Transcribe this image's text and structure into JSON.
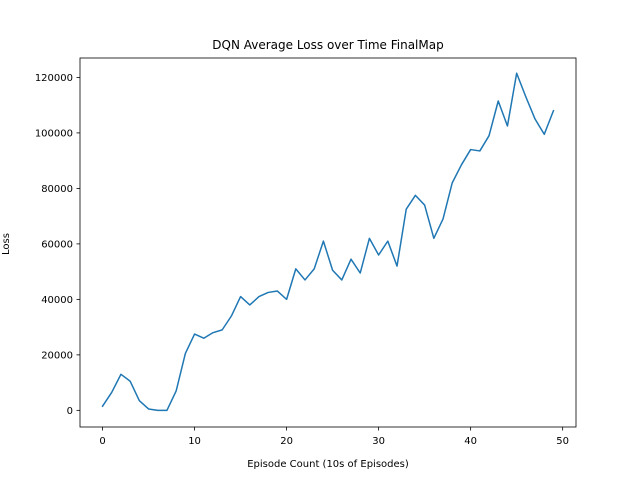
{
  "chart_data": {
    "type": "line",
    "title": "DQN Average Loss over Time FinalMap",
    "xlabel": "Episode Count (10s of Episodes)",
    "ylabel": "Loss",
    "xlim": [
      -2.45,
      51.45
    ],
    "ylim": [
      -6000,
      127000
    ],
    "xticks": [
      0,
      10,
      20,
      30,
      40,
      50
    ],
    "yticks": [
      0,
      20000,
      40000,
      60000,
      80000,
      100000,
      120000
    ],
    "grid": false,
    "legend": "none",
    "series": [
      {
        "color": "#1f77b4",
        "x": [
          0,
          1,
          2,
          3,
          4,
          5,
          6,
          7,
          8,
          9,
          10,
          11,
          12,
          13,
          14,
          15,
          16,
          17,
          18,
          19,
          20,
          21,
          22,
          23,
          24,
          25,
          26,
          27,
          28,
          29,
          30,
          31,
          32,
          33,
          34,
          35,
          36,
          37,
          38,
          39,
          40,
          41,
          42,
          43,
          44,
          45,
          46,
          47,
          48,
          49
        ],
        "y": [
          1500,
          6500,
          13000,
          10500,
          3500,
          500,
          0,
          0,
          7000,
          20500,
          27500,
          26000,
          28000,
          29000,
          34000,
          41000,
          38000,
          41000,
          42500,
          43000,
          40000,
          51000,
          47000,
          51000,
          61000,
          50500,
          47000,
          54500,
          49500,
          62000,
          56000,
          61000,
          52000,
          72500,
          77500,
          74000,
          62000,
          69000,
          82000,
          88500,
          94000,
          93500,
          99000,
          111500,
          102500,
          121500,
          113000,
          105000,
          99500,
          108000
        ]
      }
    ]
  }
}
